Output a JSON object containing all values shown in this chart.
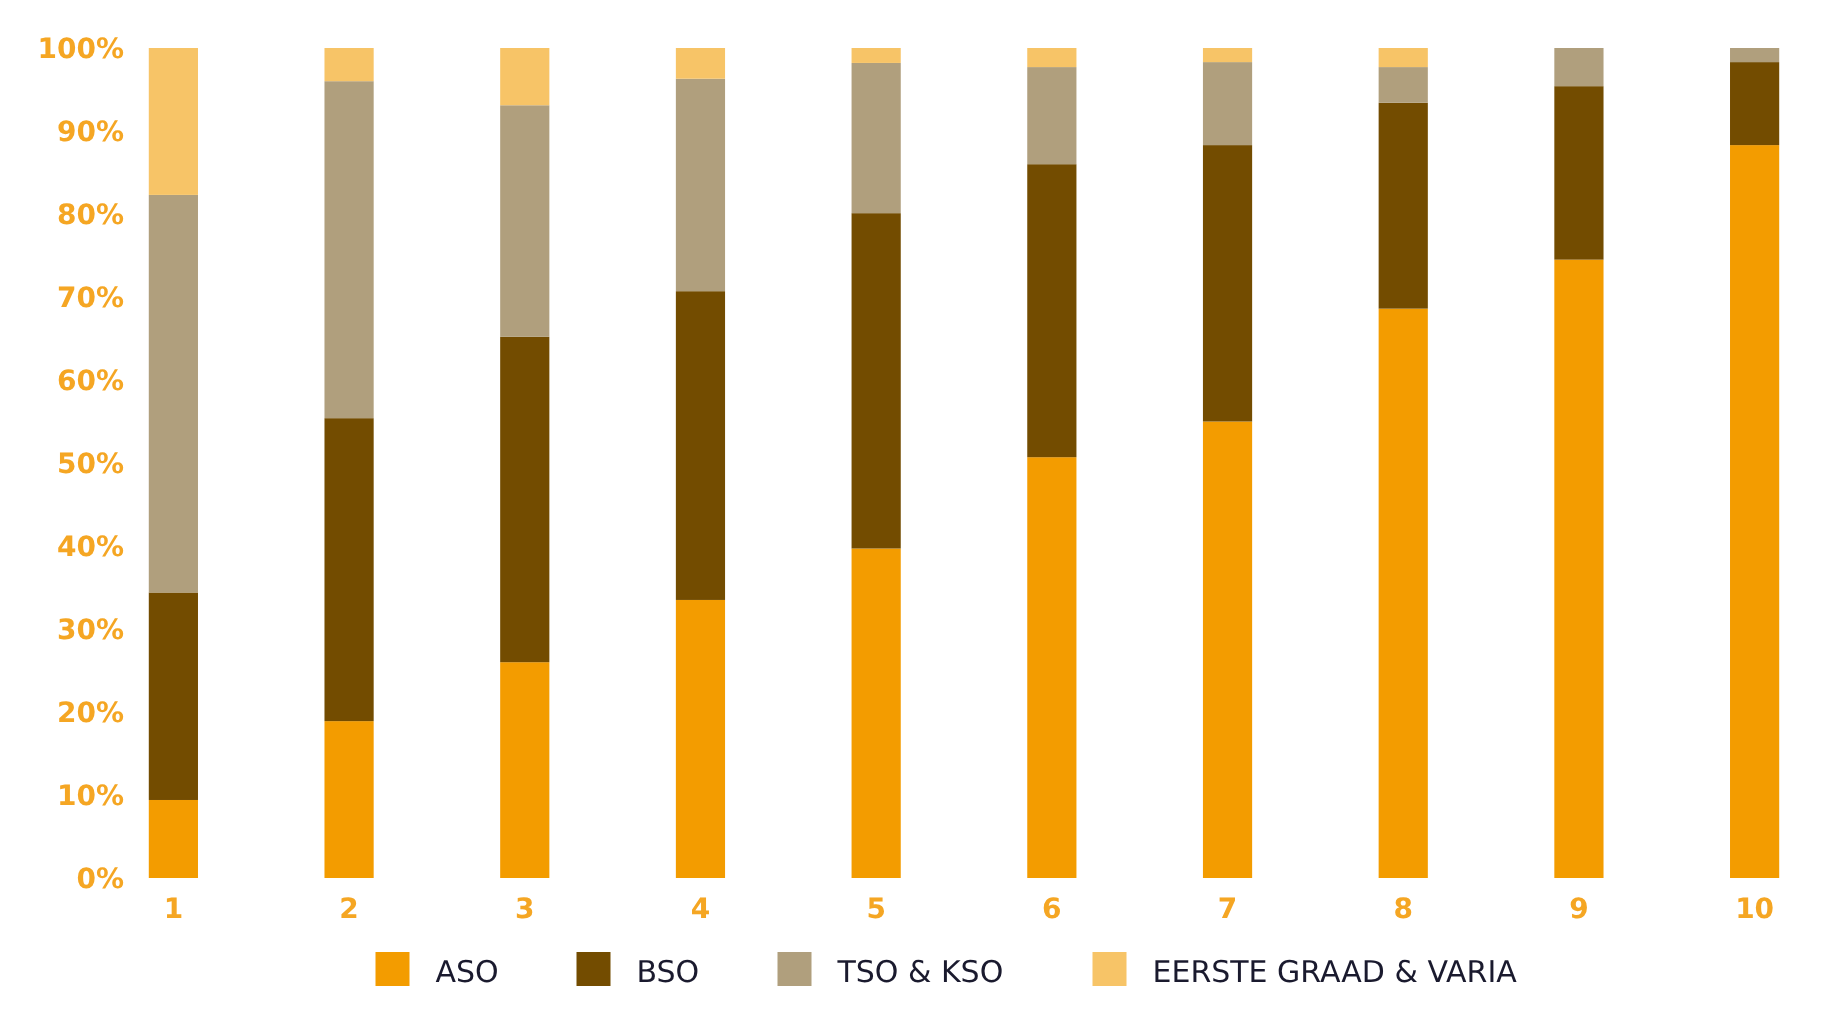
{
  "chart_data": {
    "type": "bar",
    "stacked": true,
    "categories": [
      "1",
      "2",
      "3",
      "4",
      "5",
      "6",
      "7",
      "8",
      "9",
      "10"
    ],
    "series": [
      {
        "name": "ASO",
        "color": "#f39c00",
        "values": [
          9.4,
          18.9,
          26.0,
          33.5,
          39.7,
          50.7,
          55.0,
          68.6,
          74.5,
          88.3
        ]
      },
      {
        "name": "BSO",
        "color": "#734c00",
        "values": [
          25.0,
          36.5,
          39.2,
          37.2,
          40.4,
          35.3,
          33.3,
          24.8,
          20.9,
          10.0
        ]
      },
      {
        "name": "TSO & KSO",
        "color": "#b09f7d",
        "values": [
          47.9,
          40.6,
          27.9,
          25.6,
          18.1,
          11.7,
          10.0,
          4.3,
          4.6,
          1.7
        ]
      },
      {
        "name": "EERSTE GRAAD & VARIA",
        "color": "#f7c467",
        "values": [
          17.7,
          4.0,
          6.9,
          3.7,
          1.8,
          2.3,
          1.7,
          2.3,
          0,
          0
        ]
      }
    ],
    "ylim": [
      0,
      100
    ],
    "yticks": [
      {
        "value": 0,
        "label": "0%"
      },
      {
        "value": 10,
        "label": "10%"
      },
      {
        "value": 20,
        "label": "20%"
      },
      {
        "value": 30,
        "label": "30%"
      },
      {
        "value": 40,
        "label": "40%"
      },
      {
        "value": 50,
        "label": "50%"
      },
      {
        "value": 60,
        "label": "60%"
      },
      {
        "value": 70,
        "label": "70%"
      },
      {
        "value": 80,
        "label": "80%"
      },
      {
        "value": 90,
        "label": "90%"
      },
      {
        "value": 100,
        "label": "100%"
      }
    ],
    "legend": "bottom",
    "grid": false
  }
}
